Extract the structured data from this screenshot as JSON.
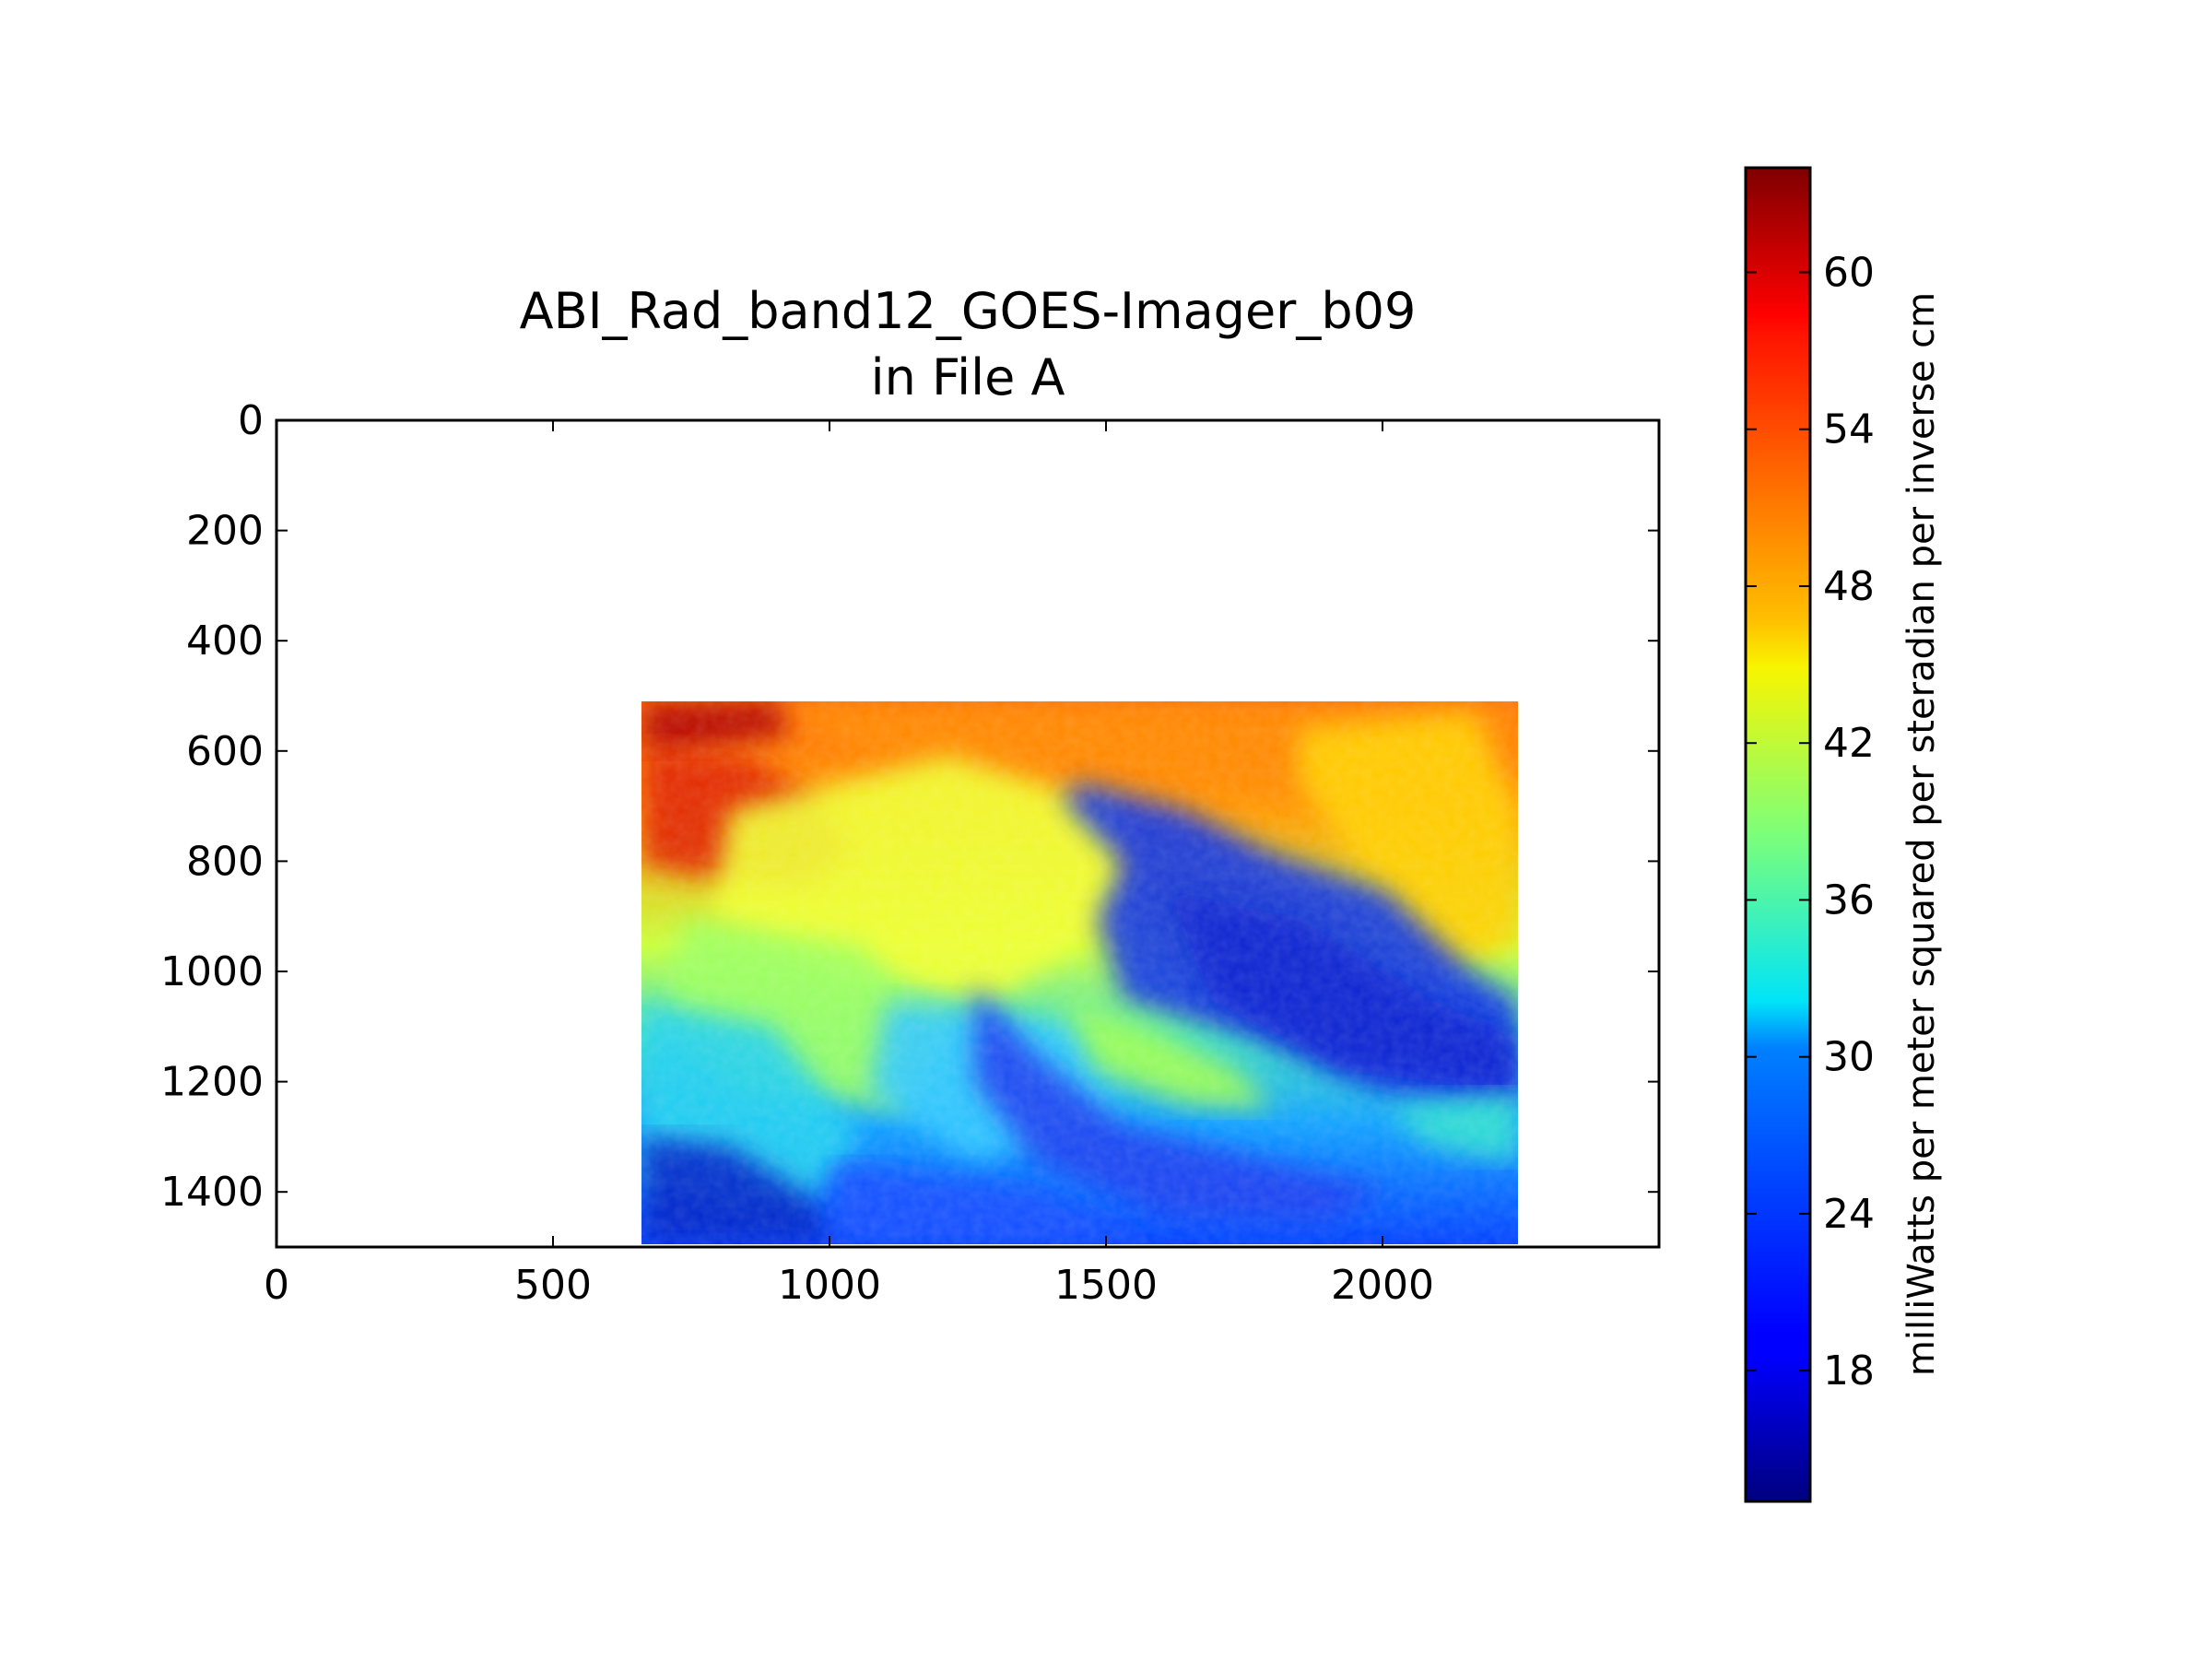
{
  "chart_data": {
    "type": "heatmap",
    "title_line1": "ABI_Rad_band12_GOES-Imager_b09",
    "title_line2": "in File A",
    "xlabel": "",
    "ylabel": "",
    "xlim": [
      0,
      2500
    ],
    "ylim": [
      1500,
      0
    ],
    "x_ticks": [
      0,
      500,
      1000,
      1500,
      2000
    ],
    "x_tick_labels": [
      "0",
      "500",
      "1000",
      "1500",
      "2000"
    ],
    "y_ticks": [
      0,
      200,
      400,
      600,
      800,
      1000,
      1200,
      1400
    ],
    "y_tick_labels": [
      "0",
      "200",
      "400",
      "600",
      "800",
      "1000",
      "1200",
      "1400"
    ],
    "data_extent": {
      "x": [
        660,
        2245
      ],
      "y": [
        510,
        1495
      ]
    },
    "colormap": "jet",
    "colorbar": {
      "label": "milliWatts per meter squared per steradian per inverse cm",
      "range": [
        13,
        64
      ],
      "ticks": [
        18,
        24,
        30,
        36,
        42,
        48,
        54,
        60
      ],
      "tick_labels": [
        "18",
        "24",
        "30",
        "36",
        "42",
        "48",
        "54",
        "60"
      ]
    },
    "grid": false
  },
  "colors": {
    "axes": "#000000",
    "background": "#ffffff"
  }
}
